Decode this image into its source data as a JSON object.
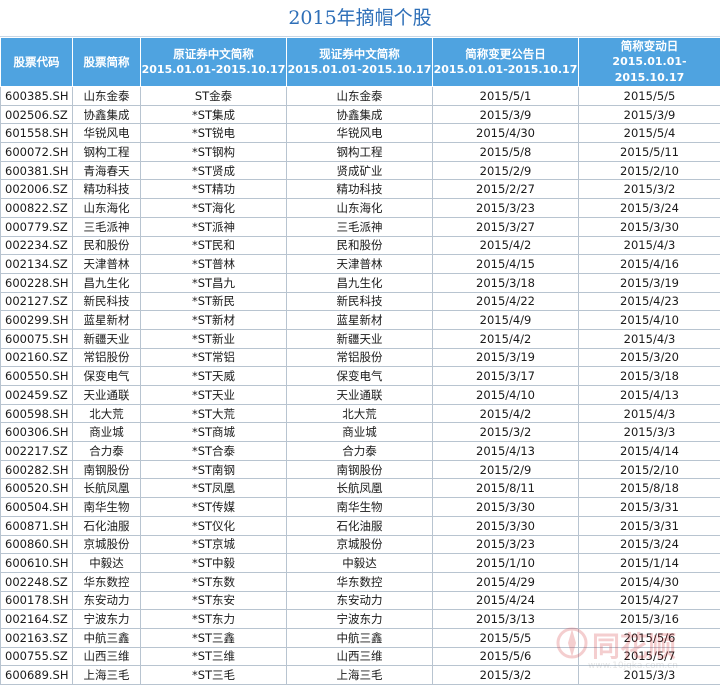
{
  "title": "2015年摘帽个股",
  "headers": [
    {
      "label": "股票代码",
      "sub": ""
    },
    {
      "label": "股票简称",
      "sub": ""
    },
    {
      "label": "原证券中文简称",
      "sub": "2015.01.01-2015.10.17"
    },
    {
      "label": "现证券中文简称",
      "sub": "2015.01.01-2015.10.17"
    },
    {
      "label": "简称变更公告日",
      "sub": "2015.01.01-2015.10.17"
    },
    {
      "label": "简称变动日",
      "sub": "2015.01.01-2015.10.17"
    }
  ],
  "rows": [
    [
      "600385.SH",
      "山东金泰",
      "ST金泰",
      "山东金泰",
      "2015/5/1",
      "2015/5/5"
    ],
    [
      "002506.SZ",
      "协鑫集成",
      "*ST集成",
      "协鑫集成",
      "2015/3/9",
      "2015/3/9"
    ],
    [
      "601558.SH",
      "华锐风电",
      "*ST锐电",
      "华锐风电",
      "2015/4/30",
      "2015/5/4"
    ],
    [
      "600072.SH",
      "钢构工程",
      "*ST钢构",
      "钢构工程",
      "2015/5/8",
      "2015/5/11"
    ],
    [
      "600381.SH",
      "青海春天",
      "*ST贤成",
      "贤成矿业",
      "2015/2/9",
      "2015/2/10"
    ],
    [
      "002006.SZ",
      "精功科技",
      "*ST精功",
      "精功科技",
      "2015/2/27",
      "2015/3/2"
    ],
    [
      "000822.SZ",
      "山东海化",
      "*ST海化",
      "山东海化",
      "2015/3/23",
      "2015/3/24"
    ],
    [
      "000779.SZ",
      "三毛派神",
      "*ST派神",
      "三毛派神",
      "2015/3/27",
      "2015/3/30"
    ],
    [
      "002234.SZ",
      "民和股份",
      "*ST民和",
      "民和股份",
      "2015/4/2",
      "2015/4/3"
    ],
    [
      "002134.SZ",
      "天津普林",
      "*ST普林",
      "天津普林",
      "2015/4/15",
      "2015/4/16"
    ],
    [
      "600228.SH",
      "昌九生化",
      "*ST昌九",
      "昌九生化",
      "2015/3/18",
      "2015/3/19"
    ],
    [
      "002127.SZ",
      "新民科技",
      "*ST新民",
      "新民科技",
      "2015/4/22",
      "2015/4/23"
    ],
    [
      "600299.SH",
      "蓝星新材",
      "*ST新材",
      "蓝星新材",
      "2015/4/9",
      "2015/4/10"
    ],
    [
      "600075.SH",
      "新疆天业",
      "*ST新业",
      "新疆天业",
      "2015/4/2",
      "2015/4/3"
    ],
    [
      "002160.SZ",
      "常铝股份",
      "*ST常铝",
      "常铝股份",
      "2015/3/19",
      "2015/3/20"
    ],
    [
      "600550.SH",
      "保变电气",
      "*ST天威",
      "保变电气",
      "2015/3/17",
      "2015/3/18"
    ],
    [
      "002459.SZ",
      "天业通联",
      "*ST天业",
      "天业通联",
      "2015/4/10",
      "2015/4/13"
    ],
    [
      "600598.SH",
      "北大荒",
      "*ST大荒",
      "北大荒",
      "2015/4/2",
      "2015/4/3"
    ],
    [
      "600306.SH",
      "商业城",
      "*ST商城",
      "商业城",
      "2015/3/2",
      "2015/3/3"
    ],
    [
      "002217.SZ",
      "合力泰",
      "*ST合泰",
      "合力泰",
      "2015/4/13",
      "2015/4/14"
    ],
    [
      "600282.SH",
      "南钢股份",
      "*ST南钢",
      "南钢股份",
      "2015/2/9",
      "2015/2/10"
    ],
    [
      "600520.SH",
      "长航凤凰",
      "*ST凤凰",
      "长航凤凰",
      "2015/8/11",
      "2015/8/18"
    ],
    [
      "600504.SH",
      "南华生物",
      "*ST传媒",
      "南华生物",
      "2015/3/30",
      "2015/3/31"
    ],
    [
      "600871.SH",
      "石化油服",
      "*ST仪化",
      "石化油服",
      "2015/3/30",
      "2015/3/31"
    ],
    [
      "600860.SH",
      "京城股份",
      "*ST京城",
      "京城股份",
      "2015/3/23",
      "2015/3/24"
    ],
    [
      "600610.SH",
      "中毅达",
      "*ST中毅",
      "中毅达",
      "2015/1/10",
      "2015/1/14"
    ],
    [
      "002248.SZ",
      "华东数控",
      "*ST东数",
      "华东数控",
      "2015/4/29",
      "2015/4/30"
    ],
    [
      "600178.SH",
      "东安动力",
      "*ST东安",
      "东安动力",
      "2015/4/24",
      "2015/4/27"
    ],
    [
      "002164.SZ",
      "宁波东力",
      "*ST东力",
      "宁波东力",
      "2015/3/13",
      "2015/3/16"
    ],
    [
      "002163.SZ",
      "中航三鑫",
      "*ST三鑫",
      "中航三鑫",
      "2015/5/5",
      "2015/5/6"
    ],
    [
      "000755.SZ",
      "山西三维",
      "*ST三维",
      "山西三维",
      "2015/5/6",
      "2015/5/7"
    ],
    [
      "600689.SH",
      "上海三毛",
      "*ST三毛",
      "上海三毛",
      "2015/3/2",
      "2015/3/3"
    ]
  ],
  "watermark": {
    "text": "同花顺",
    "url": "www.10jqka.com.cn"
  }
}
